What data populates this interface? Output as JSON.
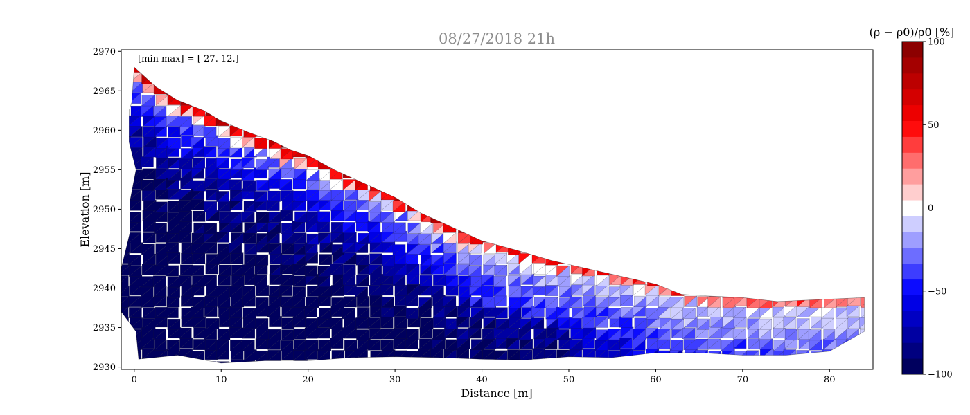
{
  "chart_data": {
    "type": "heatmap",
    "title": "08/27/2018 21h",
    "xlabel": "Distance [m]",
    "ylabel": "Elevation [m]",
    "xlim": [
      -1.5,
      85
    ],
    "ylim": [
      2929.7,
      2970.2
    ],
    "x_ticks": [
      0,
      10,
      20,
      30,
      40,
      50,
      60,
      70,
      80
    ],
    "y_ticks": [
      2930,
      2935,
      2940,
      2945,
      2950,
      2955,
      2960,
      2965,
      2970
    ],
    "annotation": "[min max] = [-27. 12.]",
    "grid": false,
    "colorbar": {
      "label": "(ρ − ρ0)/ρ0 [%]",
      "range": [
        -100,
        100
      ],
      "ticks": [
        -100,
        -50,
        0,
        50,
        100
      ],
      "levels": 21,
      "colormap": "seismic"
    },
    "surface_profile": [
      {
        "x": 0,
        "elev": 2968.0
      },
      {
        "x": 2.5,
        "elev": 2965.5
      },
      {
        "x": 5,
        "elev": 2963.8
      },
      {
        "x": 8,
        "elev": 2962.5
      },
      {
        "x": 10,
        "elev": 2961.2
      },
      {
        "x": 13,
        "elev": 2959.8
      },
      {
        "x": 16,
        "elev": 2958.6
      },
      {
        "x": 18,
        "elev": 2957.5
      },
      {
        "x": 20,
        "elev": 2956.8
      },
      {
        "x": 23,
        "elev": 2955.0
      },
      {
        "x": 26,
        "elev": 2953.5
      },
      {
        "x": 30,
        "elev": 2951.5
      },
      {
        "x": 33,
        "elev": 2949.5
      },
      {
        "x": 36,
        "elev": 2948.0
      },
      {
        "x": 40,
        "elev": 2946.0
      },
      {
        "x": 44,
        "elev": 2944.8
      },
      {
        "x": 48,
        "elev": 2943.5
      },
      {
        "x": 52,
        "elev": 2942.5
      },
      {
        "x": 56,
        "elev": 2941.5
      },
      {
        "x": 60,
        "elev": 2940.5
      },
      {
        "x": 63,
        "elev": 2939.2
      },
      {
        "x": 66,
        "elev": 2939.0
      },
      {
        "x": 70,
        "elev": 2938.8
      },
      {
        "x": 74,
        "elev": 2938.3
      },
      {
        "x": 78,
        "elev": 2938.5
      },
      {
        "x": 84,
        "elev": 2938.8
      }
    ],
    "bottom_profile": [
      {
        "x": 84,
        "elev": 2934.5
      },
      {
        "x": 80,
        "elev": 2932.0
      },
      {
        "x": 75,
        "elev": 2931.5
      },
      {
        "x": 70,
        "elev": 2931.5
      },
      {
        "x": 65,
        "elev": 2931.8
      },
      {
        "x": 60,
        "elev": 2931.8
      },
      {
        "x": 55,
        "elev": 2931.2
      },
      {
        "x": 50,
        "elev": 2931.3
      },
      {
        "x": 45,
        "elev": 2930.9
      },
      {
        "x": 40,
        "elev": 2931.0
      },
      {
        "x": 35,
        "elev": 2931.2
      },
      {
        "x": 30,
        "elev": 2931.3
      },
      {
        "x": 25,
        "elev": 2931.2
      },
      {
        "x": 20,
        "elev": 2930.8
      },
      {
        "x": 15,
        "elev": 2930.8
      },
      {
        "x": 10,
        "elev": 2930.5
      },
      {
        "x": 5,
        "elev": 2931.5
      },
      {
        "x": 0.5,
        "elev": 2931.0
      },
      {
        "x": 0.2,
        "elev": 2934.5
      },
      {
        "x": -1.5,
        "elev": 2937.0
      },
      {
        "x": -1.5,
        "elev": 2942.5
      },
      {
        "x": -0.5,
        "elev": 2947.0
      },
      {
        "x": -0.5,
        "elev": 2951.0
      },
      {
        "x": 0.2,
        "elev": 2955.0
      },
      {
        "x": -0.6,
        "elev": 2958.5
      },
      {
        "x": -0.6,
        "elev": 2962.5
      },
      {
        "x": -0.3,
        "elev": 2963.5
      }
    ]
  }
}
